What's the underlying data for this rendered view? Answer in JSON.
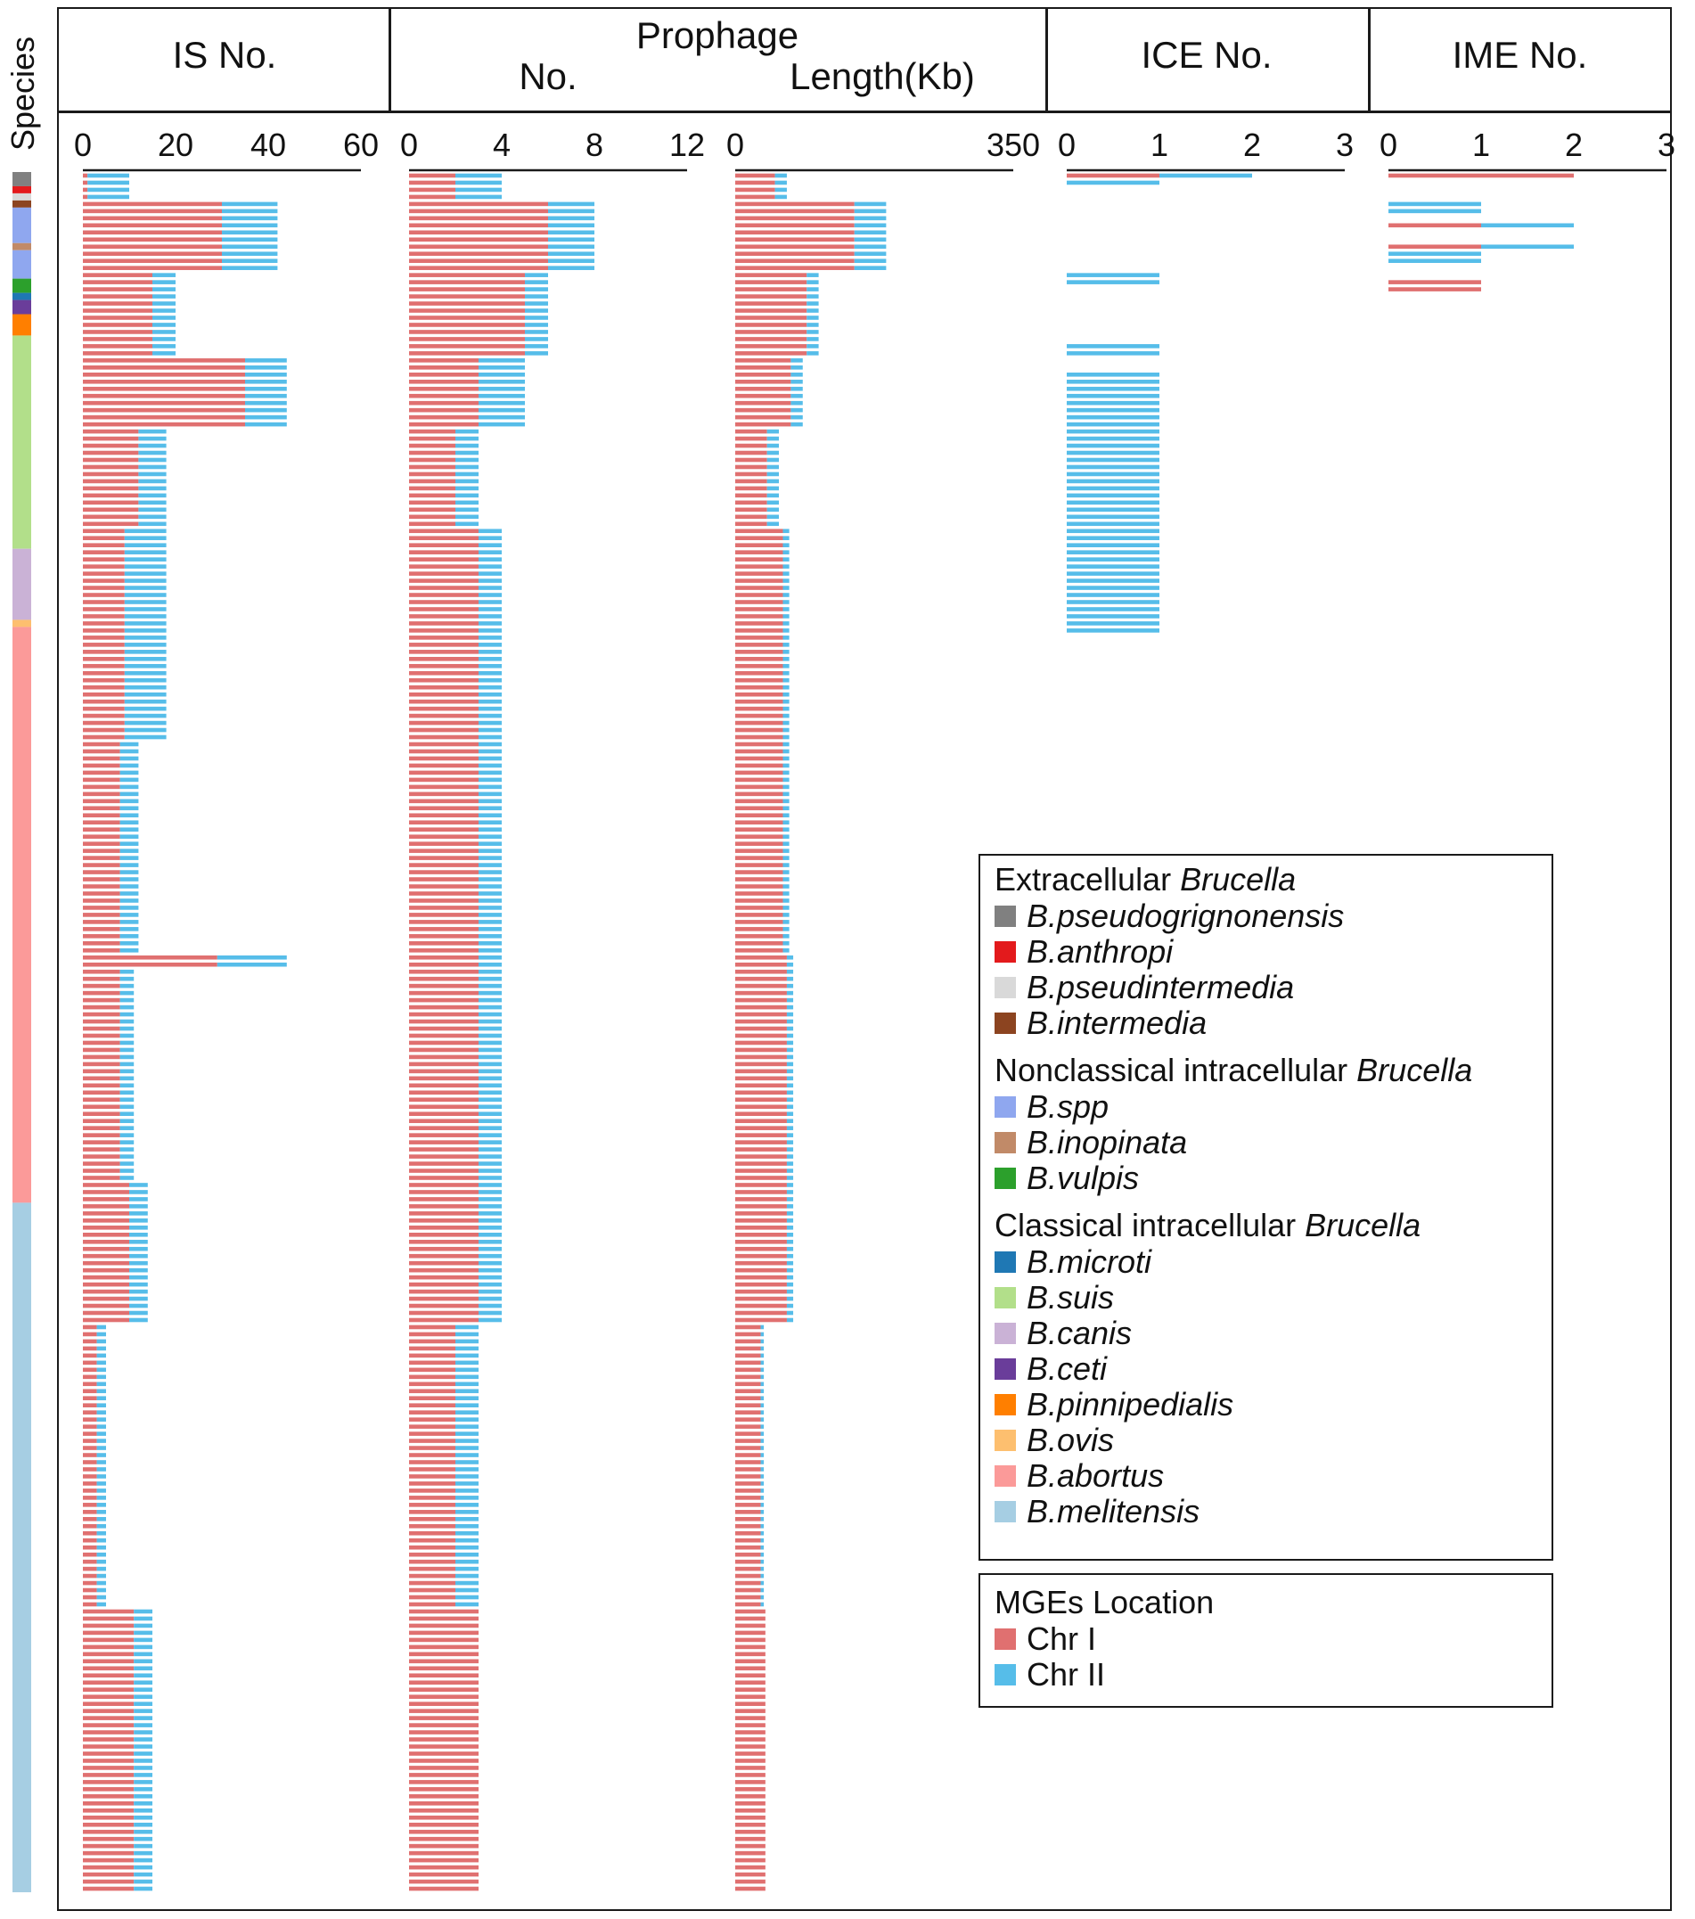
{
  "colors": {
    "chr1": "#e07070",
    "chr2": "#56bde9"
  },
  "species_axis_label": "Species",
  "headers": {
    "is": "IS No.",
    "prophage": "Prophage",
    "prophage_no": "No.",
    "prophage_length": "Length(Kb)",
    "ice": "ICE No.",
    "ime": "IME No."
  },
  "chart_data": {
    "type": "bar",
    "orientation": "horizontal",
    "stacked": true,
    "n_strains": 242,
    "stack_series": [
      "Chr I",
      "Chr II"
    ],
    "panels": [
      {
        "name": "IS No.",
        "xlim": [
          0,
          60
        ],
        "ticks": [
          "0",
          "20",
          "40",
          "60"
        ],
        "segments": [
          {
            "from": 0,
            "to": 4,
            "chr1": 1,
            "chr2": 9
          },
          {
            "from": 4,
            "to": 14,
            "chr1": 30,
            "chr2": 12
          },
          {
            "from": 14,
            "to": 26,
            "chr1": 15,
            "chr2": 5
          },
          {
            "from": 26,
            "to": 36,
            "chr1": 35,
            "chr2": 9
          },
          {
            "from": 36,
            "to": 50,
            "chr1": 12,
            "chr2": 6
          },
          {
            "from": 50,
            "to": 80,
            "chr1": 9,
            "chr2": 9
          },
          {
            "from": 80,
            "to": 110,
            "chr1": 8,
            "chr2": 4
          },
          {
            "from": 110,
            "to": 112,
            "chr1": 29,
            "chr2": 15
          },
          {
            "from": 112,
            "to": 142,
            "chr1": 8,
            "chr2": 3
          },
          {
            "from": 142,
            "to": 162,
            "chr1": 10,
            "chr2": 4
          },
          {
            "from": 162,
            "to": 202,
            "chr1": 3,
            "chr2": 2
          },
          {
            "from": 202,
            "to": 242,
            "chr1": 11,
            "chr2": 4
          }
        ]
      },
      {
        "name": "Prophage No.",
        "xlim": [
          0,
          12
        ],
        "ticks": [
          "0",
          "4",
          "8",
          "12"
        ],
        "segments": [
          {
            "from": 0,
            "to": 4,
            "chr1": 2,
            "chr2": 2
          },
          {
            "from": 4,
            "to": 14,
            "chr1": 6,
            "chr2": 2
          },
          {
            "from": 14,
            "to": 26,
            "chr1": 5,
            "chr2": 1
          },
          {
            "from": 26,
            "to": 36,
            "chr1": 3,
            "chr2": 2
          },
          {
            "from": 36,
            "to": 50,
            "chr1": 2,
            "chr2": 1
          },
          {
            "from": 50,
            "to": 110,
            "chr1": 3,
            "chr2": 1
          },
          {
            "from": 110,
            "to": 162,
            "chr1": 3,
            "chr2": 1
          },
          {
            "from": 162,
            "to": 202,
            "chr1": 2,
            "chr2": 1
          },
          {
            "from": 202,
            "to": 242,
            "chr1": 3,
            "chr2": 0
          }
        ]
      },
      {
        "name": "Prophage Length(Kb)",
        "xlim": [
          0,
          350
        ],
        "ticks": [
          "0",
          "350"
        ],
        "segments": [
          {
            "from": 0,
            "to": 4,
            "chr1": 50,
            "chr2": 15
          },
          {
            "from": 4,
            "to": 14,
            "chr1": 150,
            "chr2": 40
          },
          {
            "from": 14,
            "to": 26,
            "chr1": 90,
            "chr2": 15
          },
          {
            "from": 26,
            "to": 36,
            "chr1": 70,
            "chr2": 15
          },
          {
            "from": 36,
            "to": 50,
            "chr1": 40,
            "chr2": 15
          },
          {
            "from": 50,
            "to": 110,
            "chr1": 60,
            "chr2": 8
          },
          {
            "from": 110,
            "to": 162,
            "chr1": 65,
            "chr2": 8
          },
          {
            "from": 162,
            "to": 202,
            "chr1": 32,
            "chr2": 4
          },
          {
            "from": 202,
            "to": 242,
            "chr1": 38,
            "chr2": 0
          }
        ]
      },
      {
        "name": "ICE No.",
        "xlim": [
          0,
          3
        ],
        "ticks": [
          "0",
          "1",
          "2",
          "3"
        ],
        "segments": [
          {
            "from": 0,
            "to": 1,
            "chr1": 1,
            "chr2": 1
          },
          {
            "from": 1,
            "to": 2,
            "chr1": 0,
            "chr2": 1
          },
          {
            "from": 14,
            "to": 16,
            "chr1": 0,
            "chr2": 1
          },
          {
            "from": 24,
            "to": 26,
            "chr1": 0,
            "chr2": 1
          },
          {
            "from": 28,
            "to": 65,
            "chr1": 0,
            "chr2": 1
          }
        ]
      },
      {
        "name": "IME No.",
        "xlim": [
          0,
          3
        ],
        "ticks": [
          "0",
          "1",
          "2",
          "3"
        ],
        "segments": [
          {
            "from": 0,
            "to": 1,
            "chr1": 2,
            "chr2": 0
          },
          {
            "from": 4,
            "to": 6,
            "chr1": 0,
            "chr2": 1
          },
          {
            "from": 7,
            "to": 8,
            "chr1": 1,
            "chr2": 1
          },
          {
            "from": 10,
            "to": 11,
            "chr1": 1,
            "chr2": 1
          },
          {
            "from": 11,
            "to": 13,
            "chr1": 0,
            "chr2": 1
          },
          {
            "from": 15,
            "to": 17,
            "chr1": 1,
            "chr2": 0
          }
        ]
      }
    ],
    "species_strip": [
      {
        "species": "B.pseudogrignonensis",
        "strains": 2
      },
      {
        "species": "B.anthropi",
        "strains": 1
      },
      {
        "species": "B.pseudintermedia",
        "strains": 1
      },
      {
        "species": "B.intermedia",
        "strains": 1
      },
      {
        "species": "B.spp",
        "strains": 5
      },
      {
        "species": "B.inopinata",
        "strains": 1
      },
      {
        "species": "B.spp",
        "strains": 4
      },
      {
        "species": "B.vulpis",
        "strains": 2
      },
      {
        "species": "B.microti",
        "strains": 1
      },
      {
        "species": "B.ceti",
        "strains": 2
      },
      {
        "species": "B.pinnipedialis",
        "strains": 3
      },
      {
        "species": "B.suis",
        "strains": 30
      },
      {
        "species": "B.canis",
        "strains": 10
      },
      {
        "species": "B.ovis",
        "strains": 1
      },
      {
        "species": "B.abortus",
        "strains": 81
      },
      {
        "species": "B.melitensis",
        "strains": 97
      }
    ]
  },
  "legend_species": {
    "groups": [
      {
        "title": "Extracellular ",
        "title_em": "Brucella",
        "items": [
          {
            "label": "B.pseudogrignonensis",
            "color": "#808080"
          },
          {
            "label": "B.anthropi",
            "color": "#e31a1c"
          },
          {
            "label": "B.pseudintermedia",
            "color": "#d9d9d9"
          },
          {
            "label": "B.intermedia",
            "color": "#8c4420"
          }
        ]
      },
      {
        "title": "Nonclassical intracellular ",
        "title_em": "Brucella",
        "items": [
          {
            "label": "B.spp",
            "color": "#8fa7ef"
          },
          {
            "label": "B.inopinata",
            "color": "#c18a68"
          },
          {
            "label": "B.vulpis",
            "color": "#2ca02c"
          }
        ]
      },
      {
        "title": "Classical intracellular ",
        "title_em": "Brucella",
        "items": [
          {
            "label": "B.microti",
            "color": "#1f78b4"
          },
          {
            "label": "B.suis",
            "color": "#b2df8a"
          },
          {
            "label": "B.canis",
            "color": "#cab2d6"
          },
          {
            "label": "B.ceti",
            "color": "#6a3d9a"
          },
          {
            "label": "B.pinnipedialis",
            "color": "#ff7f00"
          },
          {
            "label": "B.ovis",
            "color": "#fdbf6f"
          },
          {
            "label": "B.abortus",
            "color": "#fb9a99"
          },
          {
            "label": "B.melitensis",
            "color": "#a6cee3"
          }
        ]
      }
    ]
  },
  "legend_location": {
    "title": "MGEs Location",
    "items": [
      {
        "label": "Chr I",
        "color": "#e07070"
      },
      {
        "label": "Chr II",
        "color": "#56bde9"
      }
    ]
  }
}
